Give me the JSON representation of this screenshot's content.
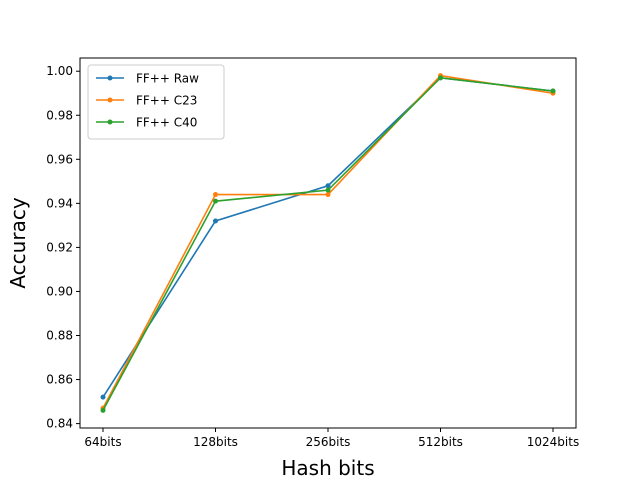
{
  "chart_data": {
    "type": "line",
    "categories": [
      "64bits",
      "128bits",
      "256bits",
      "512bits",
      "1024bits"
    ],
    "xlabel": "Hash bits",
    "ylabel": "Accuracy",
    "ylim": [
      0.838,
      1.006
    ],
    "yticks": [
      0.84,
      0.86,
      0.88,
      0.9,
      0.92,
      0.94,
      0.96,
      0.98,
      1.0
    ],
    "ytick_labels": [
      "0.84",
      "0.86",
      "0.88",
      "0.90",
      "0.92",
      "0.94",
      "0.96",
      "0.98",
      "1.00"
    ],
    "grid": false,
    "legend": "top-left",
    "series": [
      {
        "name": "FF++ Raw",
        "color": "#1f77b4",
        "values": [
          0.852,
          0.932,
          0.948,
          0.997,
          0.991
        ]
      },
      {
        "name": "FF++ C23",
        "color": "#ff7f0e",
        "values": [
          0.847,
          0.944,
          0.944,
          0.998,
          0.99
        ]
      },
      {
        "name": "FF++ C40",
        "color": "#2ca02c",
        "values": [
          0.846,
          0.941,
          0.946,
          0.997,
          0.991
        ]
      }
    ]
  }
}
